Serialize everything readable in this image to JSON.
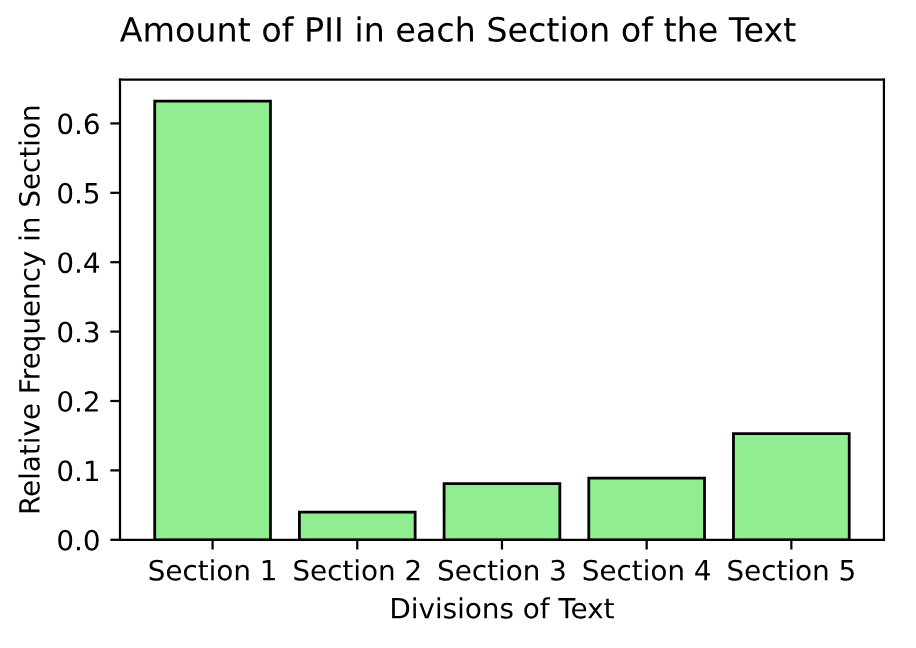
{
  "chart_data": {
    "type": "bar",
    "title": "Amount of PII in each Section of the Text",
    "xlabel": "Divisions of Text",
    "ylabel": "Relative Frequency in Section",
    "categories": [
      "Section 1",
      "Section 2",
      "Section 3",
      "Section 4",
      "Section 5"
    ],
    "values": [
      0.632,
      0.04,
      0.081,
      0.089,
      0.153
    ],
    "color": "#90ee90",
    "ylim": [
      0,
      0.663
    ],
    "yticks": [
      {
        "value": 0,
        "label": "0.0"
      },
      0.1,
      0.2,
      0.3,
      0.4,
      0.5,
      0.6
    ],
    "grid": false
  }
}
